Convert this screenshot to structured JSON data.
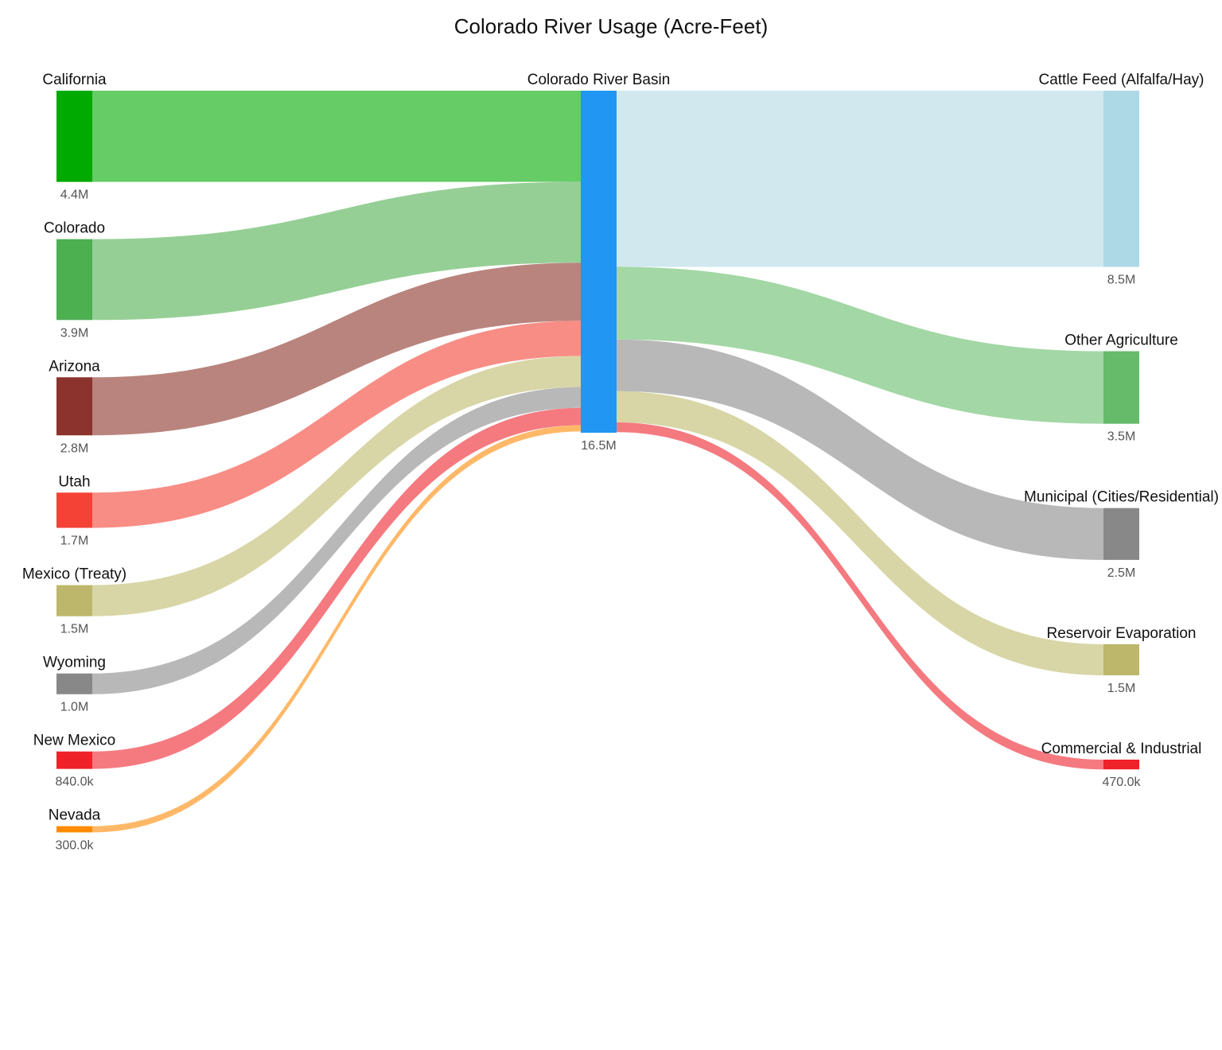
{
  "chart_data": {
    "type": "sankey",
    "title": "Colorado River Usage (Acre-Feet)",
    "center": {
      "name": "Colorado River Basin",
      "value": 16500000,
      "value_label": "16.5M",
      "color": "#2196f3"
    },
    "sources": [
      {
        "name": "California",
        "value": 4400000,
        "value_label": "4.4M",
        "color": "#00aa00",
        "link_color": "#66cc66"
      },
      {
        "name": "Colorado",
        "value": 3900000,
        "value_label": "3.9M",
        "color": "#4caf50",
        "link_color": "#96cf96"
      },
      {
        "name": "Arizona",
        "value": 2800000,
        "value_label": "2.8M",
        "color": "#8b332c",
        "link_color": "#b9847d"
      },
      {
        "name": "Utah",
        "value": 1700000,
        "value_label": "1.7M",
        "color": "#f44336",
        "link_color": "#f88d85"
      },
      {
        "name": "Mexico (Treaty)",
        "value": 1500000,
        "value_label": "1.5M",
        "color": "#bdb76b",
        "link_color": "#d8d6a6"
      },
      {
        "name": "Wyoming",
        "value": 1000000,
        "value_label": "1.0M",
        "color": "#888888",
        "link_color": "#b8b8b8"
      },
      {
        "name": "New Mexico",
        "value": 840000,
        "value_label": "840.0k",
        "color": "#ee2228",
        "link_color": "#f47a80"
      },
      {
        "name": "Nevada",
        "value": 300000,
        "value_label": "300.0k",
        "color": "#ff8c00",
        "link_color": "#ffb868"
      }
    ],
    "targets": [
      {
        "name": "Cattle Feed (Alfalfa/Hay)",
        "value": 8500000,
        "value_label": "8.5M",
        "color": "#add8e6",
        "link_color": "#d0e8ee"
      },
      {
        "name": "Other Agriculture",
        "value": 3500000,
        "value_label": "3.5M",
        "color": "#66bb6a",
        "link_color": "#a3d7a5"
      },
      {
        "name": "Municipal (Cities/Residential)",
        "value": 2500000,
        "value_label": "2.5M",
        "color": "#888888",
        "link_color": "#b8b8b8"
      },
      {
        "name": "Reservoir Evaporation",
        "value": 1500000,
        "value_label": "1.5M",
        "color": "#bdb76b",
        "link_color": "#d8d6a6"
      },
      {
        "name": "Commercial & Industrial",
        "value": 470000,
        "value_label": "470.0k",
        "color": "#ee2228",
        "link_color": "#f47a80"
      }
    ]
  }
}
